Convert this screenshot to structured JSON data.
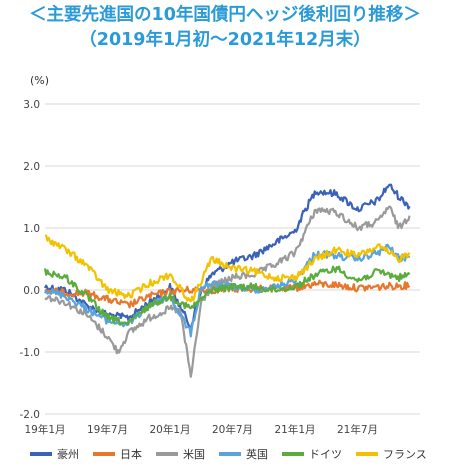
{
  "title": {
    "line1": "＜主要先進国の10年国債円ヘッジ後利回り推移＞",
    "line2": "（2019年1月初～2021年12月末）"
  },
  "chart_data": {
    "type": "line",
    "yunit": "(%)",
    "ylim": [
      -2.0,
      3.0
    ],
    "yticks": [
      "3.0",
      "2.0",
      "1.0",
      "0.0",
      "-1.0",
      "-2.0"
    ],
    "ytick_values": [
      3.0,
      2.0,
      1.0,
      0.0,
      -1.0,
      -2.0
    ],
    "xlim": [
      "2019-01",
      "2021-12"
    ],
    "xticks": [
      {
        "label": "19年1月",
        "date": "2019-01"
      },
      {
        "label": "19年7月",
        "date": "2019-07"
      },
      {
        "label": "20年1月",
        "date": "2020-01"
      },
      {
        "label": "20年7月",
        "date": "2020-07"
      },
      {
        "label": "21年1月",
        "date": "2021-01"
      },
      {
        "label": "21年7月",
        "date": "2021-07"
      }
    ],
    "grid": "horizontal",
    "legend": "bottom",
    "series": [
      {
        "name": "豪州",
        "color": "#3a62b8",
        "x": [
          "2019-01",
          "2019-03",
          "2019-05",
          "2019-07",
          "2019-09",
          "2019-11",
          "2020-01",
          "2020-03",
          "2020-04",
          "2020-05",
          "2020-07",
          "2020-09",
          "2020-11",
          "2021-01",
          "2021-02",
          "2021-03",
          "2021-05",
          "2021-07",
          "2021-09",
          "2021-10",
          "2021-11",
          "2021-12"
        ],
        "values": [
          0.05,
          0.0,
          -0.25,
          -0.4,
          -0.45,
          -0.2,
          0.05,
          -0.6,
          0.0,
          0.25,
          0.45,
          0.55,
          0.75,
          0.95,
          1.3,
          1.6,
          1.55,
          1.3,
          1.45,
          1.7,
          1.5,
          1.35
        ]
      },
      {
        "name": "日本",
        "color": "#e8772e",
        "x": [
          "2019-01",
          "2019-03",
          "2019-05",
          "2019-07",
          "2019-09",
          "2019-11",
          "2020-01",
          "2020-03",
          "2020-05",
          "2020-07",
          "2020-09",
          "2020-11",
          "2021-01",
          "2021-03",
          "2021-05",
          "2021-07",
          "2021-09",
          "2021-11",
          "2021-12"
        ],
        "values": [
          0.0,
          -0.05,
          -0.05,
          -0.15,
          -0.25,
          -0.1,
          -0.02,
          0.0,
          0.0,
          0.02,
          0.02,
          0.02,
          0.03,
          0.1,
          0.08,
          0.03,
          0.05,
          0.07,
          0.07
        ]
      },
      {
        "name": "米国",
        "color": "#9a9a9a",
        "x": [
          "2019-01",
          "2019-03",
          "2019-05",
          "2019-07",
          "2019-08",
          "2019-09",
          "2019-11",
          "2020-01",
          "2020-02",
          "2020-03",
          "2020-04",
          "2020-05",
          "2020-07",
          "2020-09",
          "2020-11",
          "2021-01",
          "2021-03",
          "2021-05",
          "2021-07",
          "2021-09",
          "2021-10",
          "2021-11",
          "2021-12"
        ],
        "values": [
          -0.1,
          -0.2,
          -0.4,
          -0.75,
          -1.0,
          -0.7,
          -0.45,
          -0.3,
          -0.35,
          -1.4,
          -0.2,
          0.05,
          0.2,
          0.25,
          0.4,
          0.6,
          1.3,
          1.25,
          1.0,
          1.1,
          1.35,
          1.0,
          1.2
        ]
      },
      {
        "name": "英国",
        "color": "#5aa3dc",
        "x": [
          "2019-01",
          "2019-03",
          "2019-05",
          "2019-07",
          "2019-09",
          "2019-11",
          "2020-01",
          "2020-03",
          "2020-04",
          "2020-05",
          "2020-07",
          "2020-09",
          "2020-11",
          "2021-01",
          "2021-03",
          "2021-05",
          "2021-07",
          "2021-09",
          "2021-10",
          "2021-11",
          "2021-12"
        ],
        "values": [
          0.0,
          -0.1,
          -0.3,
          -0.5,
          -0.55,
          -0.25,
          -0.1,
          -0.7,
          0.05,
          0.1,
          0.05,
          0.0,
          0.05,
          0.15,
          0.6,
          0.55,
          0.5,
          0.6,
          0.7,
          0.5,
          0.55
        ]
      },
      {
        "name": "ドイツ",
        "color": "#5aac3c",
        "x": [
          "2019-01",
          "2019-03",
          "2019-05",
          "2019-07",
          "2019-09",
          "2019-11",
          "2020-01",
          "2020-03",
          "2020-05",
          "2020-07",
          "2020-09",
          "2020-11",
          "2021-01",
          "2021-03",
          "2021-05",
          "2021-07",
          "2021-09",
          "2021-11",
          "2021-12"
        ],
        "values": [
          0.3,
          0.2,
          -0.1,
          -0.45,
          -0.55,
          -0.25,
          -0.1,
          -0.3,
          0.0,
          0.05,
          0.05,
          0.0,
          0.05,
          0.25,
          0.35,
          0.15,
          0.3,
          0.2,
          0.25
        ]
      },
      {
        "name": "フランス",
        "color": "#f2c200",
        "x": [
          "2019-01",
          "2019-03",
          "2019-05",
          "2019-07",
          "2019-09",
          "2019-11",
          "2020-01",
          "2020-03",
          "2020-05",
          "2020-07",
          "2020-09",
          "2020-11",
          "2021-01",
          "2021-03",
          "2021-05",
          "2021-07",
          "2021-09",
          "2021-11",
          "2021-12"
        ],
        "values": [
          0.85,
          0.65,
          0.4,
          0.0,
          -0.1,
          0.1,
          0.25,
          -0.2,
          0.5,
          0.35,
          0.3,
          0.2,
          0.2,
          0.5,
          0.65,
          0.55,
          0.7,
          0.5,
          0.6
        ]
      }
    ]
  }
}
